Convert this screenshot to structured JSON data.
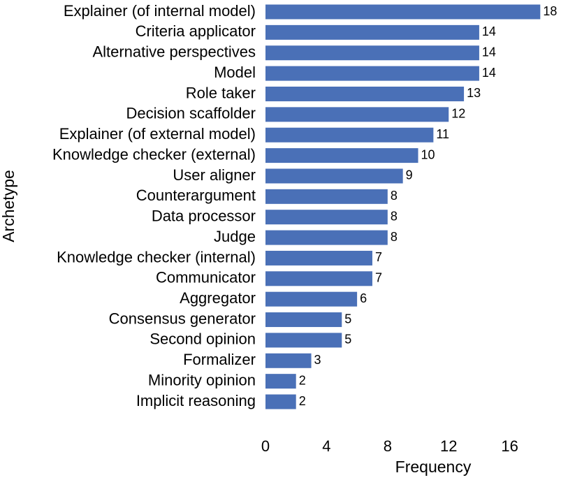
{
  "chart_data": {
    "type": "barh",
    "xlabel": "Frequency",
    "ylabel": "Archetype",
    "categories": [
      "Explainer (of internal model)",
      "Criteria applicator",
      "Alternative perspectives",
      "Model",
      "Role taker",
      "Decision scaffolder",
      "Explainer (of external model)",
      "Knowledge checker (external)",
      "User aligner",
      "Counterargument",
      "Data processor",
      "Judge",
      "Knowledge checker (internal)",
      "Communicator",
      "Aggregator",
      "Consensus generator",
      "Second opinion",
      "Formalizer",
      "Minority opinion",
      "Implicit reasoning"
    ],
    "values": [
      18,
      14,
      14,
      14,
      13,
      12,
      11,
      10,
      9,
      8,
      8,
      8,
      7,
      7,
      6,
      5,
      5,
      3,
      2,
      2
    ],
    "color": "#4a70b7",
    "xlim": [
      0,
      18.9
    ],
    "xticks": [
      0,
      4,
      8,
      12,
      16
    ],
    "grid": false
  }
}
